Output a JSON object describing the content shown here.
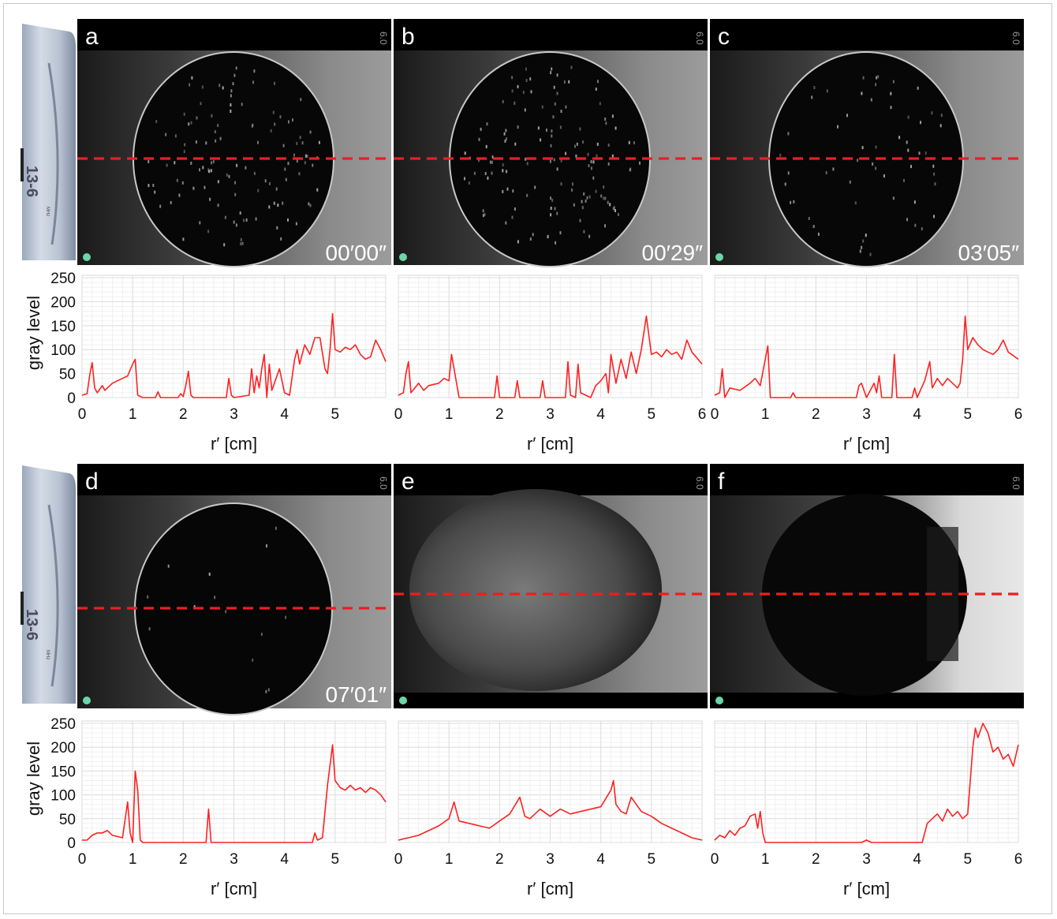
{
  "figure": {
    "probe": {
      "model_label": "13-6",
      "unit_label": "MHz"
    },
    "depth_scale_label": "6.0",
    "cut_line_color": "#e82020",
    "trace_color": "#ff2020",
    "marker_color": "#6bd6a8",
    "panels": [
      {
        "letter": "a",
        "timestamp": "00′00″",
        "scene": "sparse"
      },
      {
        "letter": "b",
        "timestamp": "00′29″",
        "scene": "sparse"
      },
      {
        "letter": "c",
        "timestamp": "03′05″",
        "scene": "sparse"
      },
      {
        "letter": "d",
        "timestamp": "07′01″",
        "scene": "very-sparse"
      },
      {
        "letter": "e",
        "timestamp": "",
        "scene": "speckle"
      },
      {
        "letter": "f",
        "timestamp": "",
        "scene": "dark-shadowed"
      }
    ]
  },
  "chart_data": [
    {
      "type": "line",
      "panel": "a",
      "xlabel": "r′ [cm]",
      "ylabel": "gray level",
      "xlim": [
        0,
        6
      ],
      "ylim": [
        0,
        255
      ],
      "x_ticks": [
        "0",
        "1",
        "2",
        "3",
        "4",
        "5"
      ],
      "y_ticks": [
        "0",
        "50",
        "100",
        "150",
        "200",
        "250"
      ],
      "series": [
        {
          "x": [
            0,
            0.1,
            0.15,
            0.2,
            0.25,
            0.3,
            0.4,
            0.45,
            0.5,
            0.6,
            0.7,
            0.8,
            0.9,
            1.0,
            1.05,
            1.1,
            1.2,
            1.45,
            1.5,
            1.55,
            1.9,
            1.95,
            2.0,
            2.05,
            2.1,
            2.15,
            2.2,
            2.85,
            2.9,
            2.95,
            3.0,
            3.3,
            3.35,
            3.4,
            3.45,
            3.5,
            3.55,
            3.6,
            3.65,
            3.7,
            3.75,
            3.8,
            3.9,
            4.0,
            4.1,
            4.2,
            4.25,
            4.3,
            4.4,
            4.5,
            4.6,
            4.7,
            4.8,
            4.85,
            4.9,
            4.95,
            5.0,
            5.1,
            5.2,
            5.3,
            5.4,
            5.5,
            5.6,
            5.7,
            5.8,
            5.9,
            6.0
          ],
          "y": [
            5,
            8,
            45,
            73,
            20,
            10,
            25,
            15,
            20,
            30,
            35,
            40,
            45,
            70,
            80,
            5,
            0,
            0,
            12,
            0,
            0,
            8,
            2,
            25,
            55,
            5,
            0,
            0,
            40,
            5,
            0,
            5,
            60,
            10,
            45,
            20,
            60,
            90,
            0,
            70,
            15,
            30,
            60,
            10,
            5,
            80,
            100,
            70,
            110,
            90,
            125,
            125,
            60,
            50,
            100,
            175,
            100,
            95,
            105,
            100,
            110,
            90,
            80,
            85,
            120,
            100,
            75
          ]
        }
      ]
    },
    {
      "type": "line",
      "panel": "b",
      "xlabel": "r′ [cm]",
      "ylabel": "",
      "xlim": [
        0,
        6
      ],
      "ylim": [
        0,
        255
      ],
      "x_ticks": [
        "0",
        "1",
        "2",
        "3",
        "4",
        "5",
        "6"
      ],
      "y_ticks": [],
      "series": [
        {
          "x": [
            0,
            0.1,
            0.15,
            0.2,
            0.25,
            0.4,
            0.5,
            0.6,
            0.8,
            0.9,
            1.0,
            1.05,
            1.1,
            1.2,
            1.9,
            1.95,
            2.0,
            2.3,
            2.35,
            2.4,
            2.8,
            2.85,
            2.9,
            3.3,
            3.35,
            3.4,
            3.5,
            3.55,
            3.6,
            3.8,
            3.9,
            4.0,
            4.1,
            4.15,
            4.2,
            4.3,
            4.4,
            4.5,
            4.6,
            4.7,
            4.8,
            4.9,
            5.0,
            5.1,
            5.2,
            5.3,
            5.4,
            5.5,
            5.6,
            5.7,
            5.8,
            6.0
          ],
          "y": [
            5,
            10,
            50,
            75,
            10,
            30,
            15,
            25,
            30,
            40,
            35,
            90,
            60,
            0,
            0,
            45,
            0,
            0,
            35,
            0,
            0,
            35,
            0,
            0,
            75,
            5,
            0,
            70,
            10,
            0,
            25,
            35,
            50,
            10,
            90,
            30,
            80,
            40,
            95,
            50,
            100,
            170,
            90,
            95,
            85,
            100,
            90,
            95,
            80,
            120,
            95,
            70
          ]
        }
      ]
    },
    {
      "type": "line",
      "panel": "c",
      "xlabel": "r′ [cm]",
      "ylabel": "",
      "xlim": [
        0,
        6
      ],
      "ylim": [
        0,
        255
      ],
      "x_ticks": [
        "0",
        "1",
        "2",
        "3",
        "4",
        "5",
        "6"
      ],
      "y_ticks": [],
      "series": [
        {
          "x": [
            0,
            0.1,
            0.15,
            0.2,
            0.3,
            0.5,
            0.7,
            0.8,
            0.9,
            1.0,
            1.05,
            1.1,
            1.5,
            1.55,
            1.6,
            2.8,
            2.85,
            2.9,
            3.0,
            3.15,
            3.2,
            3.25,
            3.3,
            3.5,
            3.55,
            3.6,
            3.9,
            3.95,
            4.0,
            4.15,
            4.2,
            4.25,
            4.3,
            4.4,
            4.5,
            4.6,
            4.7,
            4.8,
            4.85,
            4.9,
            4.95,
            5.0,
            5.1,
            5.2,
            5.3,
            5.4,
            5.5,
            5.6,
            5.7,
            5.8,
            6.0
          ],
          "y": [
            5,
            10,
            60,
            0,
            20,
            15,
            30,
            40,
            25,
            80,
            108,
            0,
            0,
            10,
            0,
            0,
            25,
            30,
            0,
            30,
            10,
            45,
            0,
            0,
            90,
            0,
            0,
            20,
            0,
            35,
            55,
            75,
            20,
            40,
            25,
            40,
            30,
            20,
            30,
            80,
            170,
            100,
            125,
            110,
            100,
            95,
            90,
            100,
            120,
            95,
            80
          ]
        }
      ]
    },
    {
      "type": "line",
      "panel": "d",
      "xlabel": "r′ [cm]",
      "ylabel": "gray level",
      "xlim": [
        0,
        6
      ],
      "ylim": [
        0,
        255
      ],
      "x_ticks": [
        "0",
        "1",
        "2",
        "3",
        "4",
        "5"
      ],
      "y_ticks": [
        "0",
        "50",
        "100",
        "150",
        "200",
        "250"
      ],
      "series": [
        {
          "x": [
            0,
            0.1,
            0.2,
            0.3,
            0.4,
            0.5,
            0.6,
            0.8,
            0.9,
            0.95,
            1.0,
            1.05,
            1.1,
            1.15,
            1.2,
            2.45,
            2.5,
            2.55,
            4.55,
            4.6,
            4.65,
            4.75,
            4.85,
            4.95,
            5.0,
            5.1,
            5.2,
            5.3,
            5.4,
            5.5,
            5.6,
            5.7,
            5.8,
            5.9,
            6.0
          ],
          "y": [
            5,
            5,
            15,
            20,
            20,
            25,
            15,
            10,
            85,
            20,
            0,
            150,
            110,
            5,
            0,
            0,
            70,
            0,
            0,
            20,
            5,
            10,
            120,
            205,
            130,
            115,
            110,
            120,
            110,
            115,
            105,
            115,
            110,
            100,
            85
          ]
        }
      ]
    },
    {
      "type": "line",
      "panel": "e",
      "xlabel": "r′ [cm]",
      "ylabel": "",
      "xlim": [
        0,
        6
      ],
      "ylim": [
        0,
        255
      ],
      "x_ticks": [
        "0",
        "1",
        "2",
        "3",
        "4",
        "5"
      ],
      "y_ticks": [],
      "series": [
        {
          "x": [
            0,
            0.2,
            0.4,
            0.6,
            0.8,
            1.0,
            1.1,
            1.2,
            1.4,
            1.6,
            1.8,
            2.0,
            2.2,
            2.4,
            2.5,
            2.6,
            2.8,
            3.0,
            3.2,
            3.4,
            3.6,
            3.8,
            4.0,
            4.2,
            4.25,
            4.3,
            4.4,
            4.5,
            4.6,
            4.7,
            4.8,
            5.0,
            5.2,
            5.4,
            5.6,
            5.8,
            6.0
          ],
          "y": [
            5,
            10,
            15,
            25,
            35,
            50,
            85,
            45,
            40,
            35,
            30,
            45,
            60,
            95,
            55,
            50,
            70,
            55,
            70,
            60,
            65,
            70,
            75,
            110,
            130,
            80,
            65,
            60,
            95,
            80,
            65,
            55,
            40,
            30,
            20,
            10,
            5
          ]
        }
      ]
    },
    {
      "type": "line",
      "panel": "f",
      "xlabel": "r′ [cm]",
      "ylabel": "",
      "xlim": [
        0,
        6
      ],
      "ylim": [
        0,
        255
      ],
      "x_ticks": [
        "0",
        "1",
        "2",
        "3",
        "4",
        "5",
        "6"
      ],
      "y_ticks": [],
      "series": [
        {
          "x": [
            0,
            0.1,
            0.2,
            0.3,
            0.4,
            0.5,
            0.6,
            0.7,
            0.8,
            0.85,
            0.9,
            0.95,
            1.0,
            2.9,
            3.0,
            3.1,
            4.1,
            4.2,
            4.3,
            4.4,
            4.5,
            4.6,
            4.7,
            4.8,
            4.9,
            5.0,
            5.1,
            5.15,
            5.2,
            5.3,
            5.4,
            5.5,
            5.6,
            5.7,
            5.8,
            5.9,
            6.0
          ],
          "y": [
            5,
            15,
            10,
            25,
            15,
            30,
            35,
            55,
            60,
            30,
            65,
            20,
            0,
            0,
            5,
            0,
            0,
            40,
            50,
            60,
            45,
            70,
            55,
            65,
            50,
            60,
            200,
            240,
            220,
            250,
            230,
            190,
            200,
            175,
            185,
            160,
            205
          ]
        }
      ]
    }
  ]
}
